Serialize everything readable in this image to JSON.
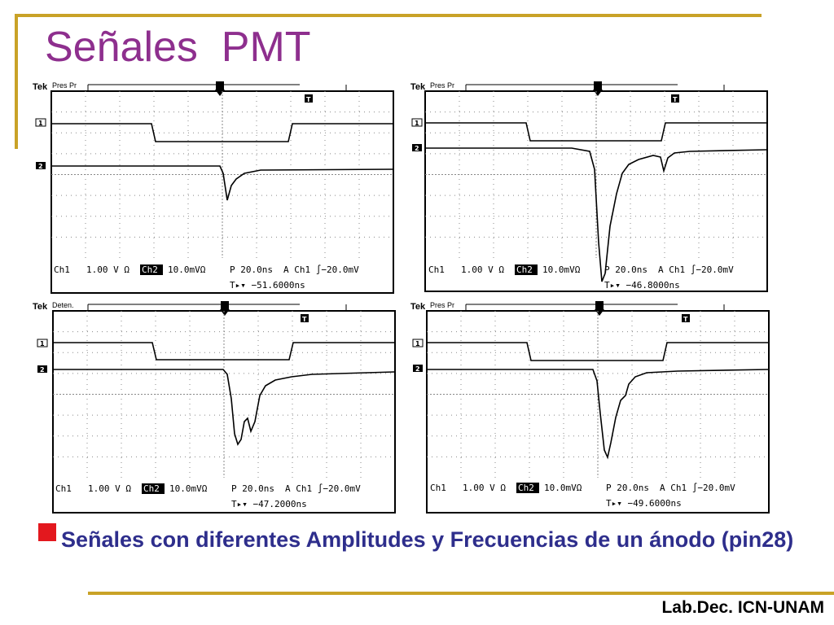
{
  "slide": {
    "title": "Señales  PMT",
    "caption": "Señales con diferentes  Amplitudes y Frecuencias de un ánodo (pin28)",
    "footer": "Lab.Dec. ICN-UNAM",
    "colors": {
      "title": "#8e2f8e",
      "caption": "#2e2e8c",
      "accent_rule": "#c9a227",
      "bullet": "#e3181e"
    }
  },
  "scopes": [
    {
      "brand": "Tek",
      "mode": "Pres Pr",
      "ch1_label": "Ch1",
      "ch1_scale": "1.00 V Ω",
      "ch2_label": "Ch2",
      "ch2_scale": "10.0mVΩ",
      "timebase": "P 20.0ns",
      "trigger": "A  Ch1  ∫−20.0mV",
      "delay": "T▸▾ −51.6000ns",
      "trace_marker": "T",
      "marker_1": "1",
      "marker_2": "2"
    },
    {
      "brand": "Tek",
      "mode": "Pres Pr",
      "ch1_label": "Ch1",
      "ch1_scale": "1.00 V Ω",
      "ch2_label": "Ch2",
      "ch2_scale": "10.0mVΩ",
      "timebase": "P 20.0ns",
      "trigger": "A  Ch1  ∫−20.0mV",
      "delay": "T▸▾ −46.8000ns",
      "trace_marker": "T",
      "marker_1": "1",
      "marker_2": "2"
    },
    {
      "brand": "Tek",
      "mode": "Deten.",
      "ch1_label": "Ch1",
      "ch1_scale": "1.00 V Ω",
      "ch2_label": "Ch2",
      "ch2_scale": "10.0mVΩ",
      "timebase": "P 20.0ns",
      "trigger": "A  Ch1  ∫−20.0mV",
      "delay": "T▸▾ −47.2000ns",
      "trace_marker": "T",
      "marker_1": "1",
      "marker_2": "2"
    },
    {
      "brand": "Tek",
      "mode": "Pres Pr",
      "ch1_label": "Ch1",
      "ch1_scale": "1.00 V Ω",
      "ch2_label": "Ch2",
      "ch2_scale": "10.0mVΩ",
      "timebase": "P 20.0ns",
      "trigger": "A  Ch1  ∫−20.0mV",
      "delay": "T▸▾ −49.6000ns",
      "trace_marker": "T",
      "marker_1": "1",
      "marker_2": "2"
    }
  ]
}
